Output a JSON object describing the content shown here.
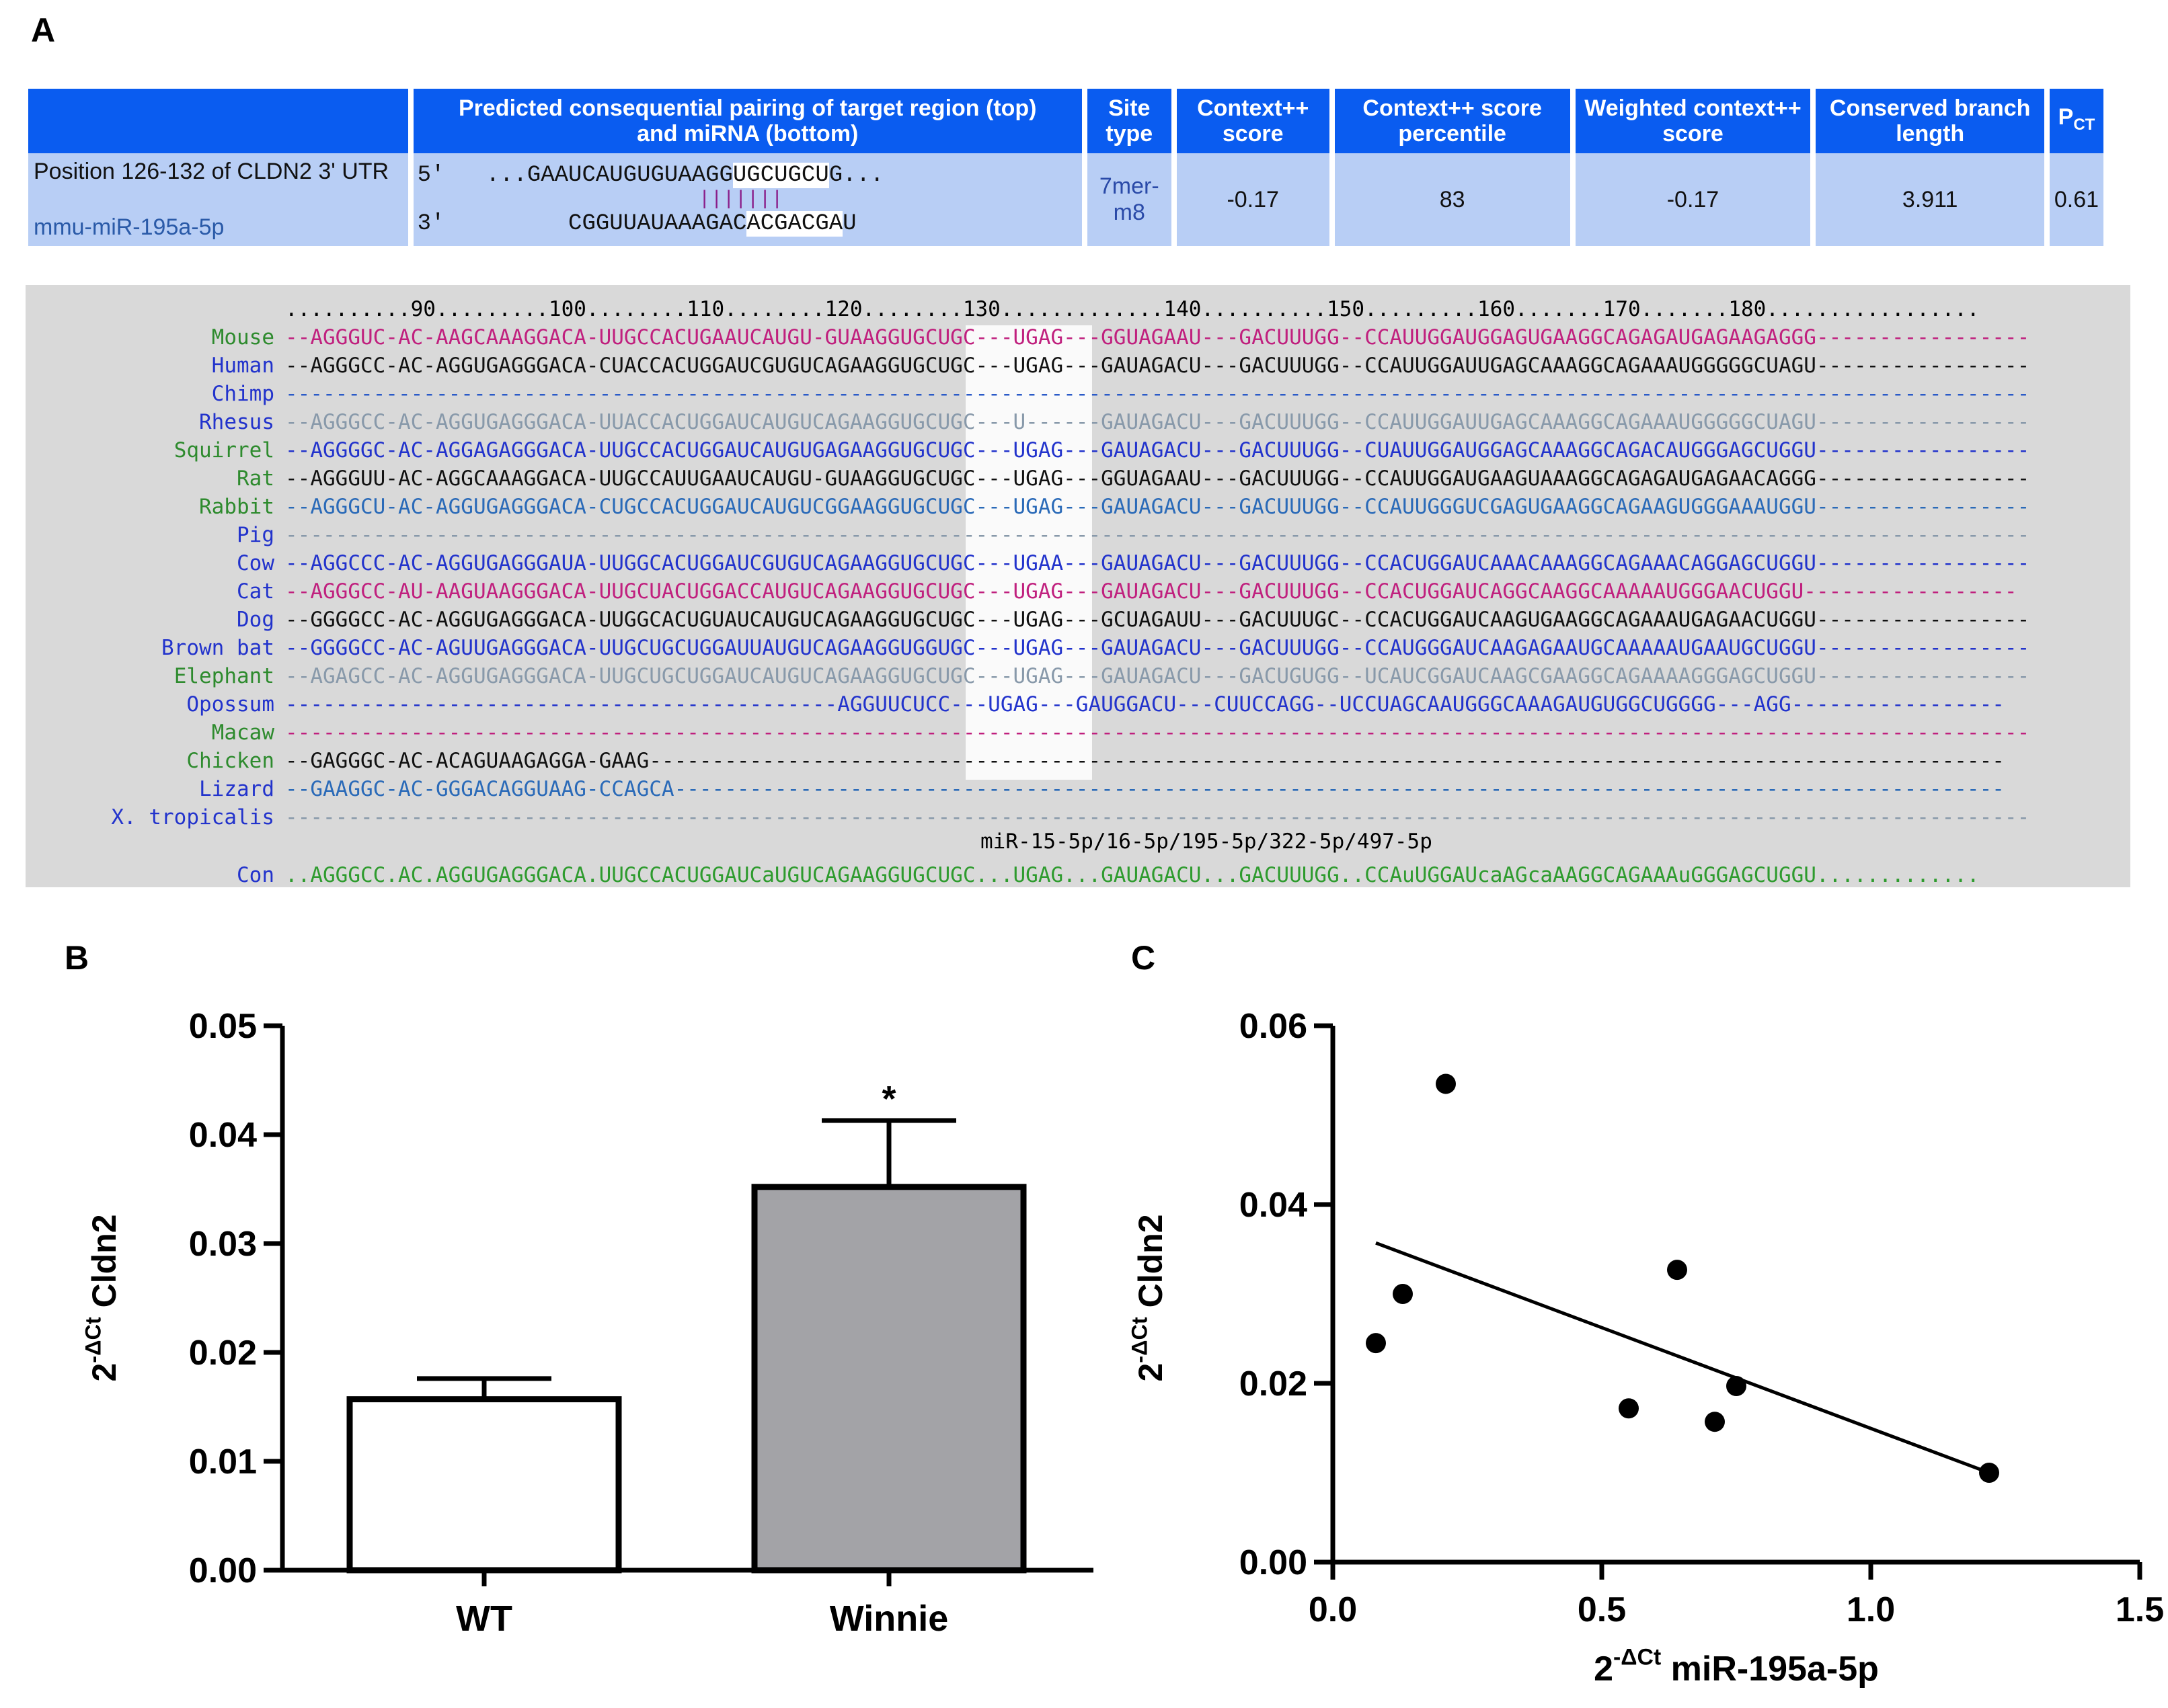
{
  "panels": {
    "a": "A",
    "b": "B",
    "c": "C"
  },
  "table": {
    "headers": {
      "blank": "",
      "pairing_1": "Predicted consequential pairing of target region (top)",
      "pairing_2": "and miRNA (bottom)",
      "site_1": "Site",
      "site_2": "type",
      "ctx_1": "Context++",
      "ctx_2": "score",
      "pct_1": "Context++ score",
      "pct_2": "percentile",
      "w_1": "Weighted context++",
      "w_2": "score",
      "cb_1": "Conserved branch",
      "cb_2": "length",
      "pct_main": "P",
      "pct_sub": "CT"
    },
    "row": {
      "position": "Position 126-132 of CLDN2 3' UTR",
      "mirna": "mmu-miR-195a-5p",
      "pair_top_prefix": "5'   ...GAAUCAUGUGUAAGG",
      "pair_top_box": "UGCUGCU",
      "pair_top_suffix": "G...",
      "pair_bars": "|||||||",
      "pair_bot_prefix": "3'         CGGUUAUAAAGAC",
      "pair_bot_box": "ACGACGA",
      "pair_bot_suffix": "U",
      "site_type_1": "7mer-",
      "site_type_2": "m8",
      "context_score": "-0.17",
      "percentile": "83",
      "weighted": "-0.17",
      "branch_length": "3.911",
      "pct": "0.61"
    }
  },
  "alignment": {
    "ruler": "..........90.........100........110........120........130.............140..........150.........160.......170.......180.................",
    "rows": [
      {
        "name": "Mouse",
        "color": "#2e8b2e",
        "seq_color": "#c0207e",
        "seq": "--AGGGUC-AC-AAGCAAAGGACA-UUGCCACUGAAUCAUGU-GUAAGGUGCUGC---UGAG---GGUAGAAU---GACUUUGG--CCAUUGGAUGGAGUGAAGGCAGAGAUGAGAAGAGGG-----------------"
      },
      {
        "name": "Human",
        "color": "#2233cc",
        "seq_color": "#111111",
        "seq": "--AGGGCC-AC-AGGUGAGGGACA-CUACCACUGGAUCGUGUCAGAAGGUGCUGC---UGAG---GAUAGACU---GACUUUGG--CCAUUGGAUUGAGCAAAGGCAGAAAUGGGGGCUAGU-----------------"
      },
      {
        "name": "Chimp",
        "color": "#2233cc",
        "seq_color": "#2a5ac8",
        "seq": "-------------------------------------------------------------------------------------------------------------------------------------------"
      },
      {
        "name": "Rhesus",
        "color": "#2233cc",
        "seq_color": "#8899aa",
        "seq": "--AGGGCC-AC-AGGUGAGGGACA-UUACCACUGGAUCAUGUCAGAAGGUGCUGC---U------GAUAGACU---GACUUUGG--CCAUUGGAUUGAGCAAAGGCAGAAAUGGGGGCUAGU-----------------"
      },
      {
        "name": "Squirrel",
        "color": "#2e8b2e",
        "seq_color": "#2233cc",
        "seq": "--AGGGGC-AC-AGGAGAGGGACA-UUGCCACUGGAUCAUGUGAGAAGGUGCUGC---UGAG---GAUAGACU---GACUUUGG--CUAUUGGAUGGAGCAAAGGCAGACAUGGGAGCUGGU-----------------"
      },
      {
        "name": "Rat",
        "color": "#2e8b2e",
        "seq_color": "#111111",
        "seq": "--AGGGUU-AC-AGGCAAAGGACA-UUGCCAUUGAAUCAUGU-GUAAGGUGCUGC---UGAG---GGUAGAAU---GACUUUGG--CCAUUGGAUGAAGUAAAGGCAGAGAUGAGAACAGGG-----------------"
      },
      {
        "name": "Rabbit",
        "color": "#2e8b2e",
        "seq_color": "#2a6ab8",
        "seq": "--AGGGCU-AC-AGGUGAGGGACA-CUGCCACUGGAUCAUGUCGGAAGGUGCUGC---UGAG---GAUAGACU---GACUUUGG--CCAUUGGGUCGAGUGAAGGCAGAAGUGGGAAAUGGU-----------------"
      },
      {
        "name": "Pig",
        "color": "#2233cc",
        "seq_color": "#8899aa",
        "seq": "-------------------------------------------------------------------------------------------------------------------------------------------"
      },
      {
        "name": "Cow",
        "color": "#2233cc",
        "seq_color": "#2233cc",
        "seq": "--AGGCCC-AC-AGGUGAGGGAUA-UUGGCACUGGAUCGUGUCAGAAGGUGCUGC---UGAA---GAUAGACU---GACUUUGG--CCACUGGAUCAAACAAAGGCAGAAACAGGAGCUGGU-----------------"
      },
      {
        "name": "Cat",
        "color": "#2233cc",
        "seq_color": "#c0207e",
        "seq": "--AGGGCC-AU-AAGUAAGGGACA-UUGCUACUGGACCAUGUCAGAAGGUGCUGC---UGAG---GAUAGACU---GACUUUGG--CCACUGGAUCAGGCAAGGCAAAAAUGGGAACUGGU-----------------"
      },
      {
        "name": "Dog",
        "color": "#2233cc",
        "seq_color": "#111111",
        "seq": "--GGGGCC-AC-AGGUGAGGGACA-UUGGCACUGUAUCAUGUCAGAAGGUGCUGC---UGAG---GCUAGAUU---GACUUUGC--CCACUGGAUCAAGUGAAGGCAGAAAUGAGAACUGGU-----------------"
      },
      {
        "name": "Brown bat",
        "color": "#2233cc",
        "seq_color": "#2233cc",
        "seq": "--GGGGCC-AC-AGUUGAGGGACA-UUGCUGCUGGAUUAUGUCAGAAGGUGGUGC---UGAG---GAUAGACU---GACUUUGG--CCAUGGGAUCAAGAGAAUGCAAAAAUGAAUGCUGGU-----------------"
      },
      {
        "name": "Elephant",
        "color": "#2e8b2e",
        "seq_color": "#8899aa",
        "seq": "--AGAGCC-AC-AGGUGAGGGACA-UUGCUGCUGGAUCAUGUCAGAAGGUGCUGC---UGAG---GAUAGACU---GACUGUGG--UCAUCGGAUCAAGCGAAGGCAGAAAAGGGAGCUGGU-----------------"
      },
      {
        "name": "Opossum",
        "color": "#2233cc",
        "seq_color": "#2233cc",
        "seq": "--------------------------------------------AGGUUCUCC---UGAG---GAUGGACU---CUUCCAGG--UCCUAGCAAUGGGCAAAGAUGUGGCUGGGG---AGG-----------------"
      },
      {
        "name": "Macaw",
        "color": "#2e8b2e",
        "seq_color": "#c0207e",
        "seq": "-------------------------------------------------------------------------------------------------------------------------------------------"
      },
      {
        "name": "Chicken",
        "color": "#2e8b2e",
        "seq_color": "#111111",
        "seq": "--GAGGGC-AC-ACAGUAAGAGGA-GAAG------------------------------------------------------------------------------------------------------------"
      },
      {
        "name": "Lizard",
        "color": "#2233cc",
        "seq_color": "#2a6ab8",
        "seq": "--GAAGGC-AC-GGGACAGGUAAG-CCAGCA----------------------------------------------------------------------------------------------------------"
      },
      {
        "name": "X. tropicalis",
        "color": "#2233cc",
        "seq_color": "#8899aa",
        "seq": "-------------------------------------------------------------------------------------------------------------------------------------------"
      }
    ],
    "mirna_family": "miR-15-5p/16-5p/195-5p/322-5p/497-5p",
    "consensus": {
      "name": "Con",
      "color": "#2233cc",
      "seq_color": "#2e9b2e",
      "seq": "..AGGGCC.AC.AGGUGAGGGACA.UUGCCACUGGAUCaUGUCAGAAGGUGCUGC...UGAG...GAUAGACU...GACUUUGG..CCAuUGGAUcaAGcaAAGGCAGAAAuGGGAGCUGGU............."
    }
  },
  "chart_data": [
    {
      "type": "bar",
      "title": "",
      "categories": [
        "WT",
        "Winnie"
      ],
      "values": [
        0.0157,
        0.0352
      ],
      "errors": [
        0.0019,
        0.0061
      ],
      "colors": [
        "#ffffff",
        "#a3a3a7"
      ],
      "significance": [
        "",
        "*"
      ],
      "ylabel_base": "2",
      "ylabel_exp": "-ΔCt",
      "ylabel_rest": " Cldn2",
      "ylim": [
        0,
        0.05
      ],
      "yticks": [
        0.0,
        0.01,
        0.02,
        0.03,
        0.04,
        0.05
      ],
      "ytick_labels": [
        "0.00",
        "0.01",
        "0.02",
        "0.03",
        "0.04",
        "0.05"
      ]
    },
    {
      "type": "scatter",
      "title": "",
      "points": [
        {
          "x": 0.08,
          "y": 0.0245
        },
        {
          "x": 0.13,
          "y": 0.03
        },
        {
          "x": 0.21,
          "y": 0.0535
        },
        {
          "x": 0.55,
          "y": 0.0172
        },
        {
          "x": 0.64,
          "y": 0.0327
        },
        {
          "x": 0.71,
          "y": 0.0157
        },
        {
          "x": 0.75,
          "y": 0.0197
        },
        {
          "x": 1.22,
          "y": 0.01
        }
      ],
      "fit_line": {
        "x": [
          0.08,
          1.22
        ],
        "y": [
          0.0357,
          0.01
        ]
      },
      "xlim": [
        0,
        1.5
      ],
      "ylim": [
        0,
        0.06
      ],
      "xticks": [
        0.0,
        0.5,
        1.0,
        1.5
      ],
      "xtick_labels": [
        "0.0",
        "0.5",
        "1.0",
        "1.5"
      ],
      "yticks": [
        0.0,
        0.02,
        0.04,
        0.06
      ],
      "ytick_labels": [
        "0.00",
        "0.02",
        "0.04",
        "0.06"
      ],
      "xlabel_base": "2",
      "xlabel_exp": "-ΔCt",
      "xlabel_rest": " miR-195a-5p",
      "ylabel_base": "2",
      "ylabel_exp": "-ΔCt",
      "ylabel_rest": " Cldn2"
    }
  ]
}
